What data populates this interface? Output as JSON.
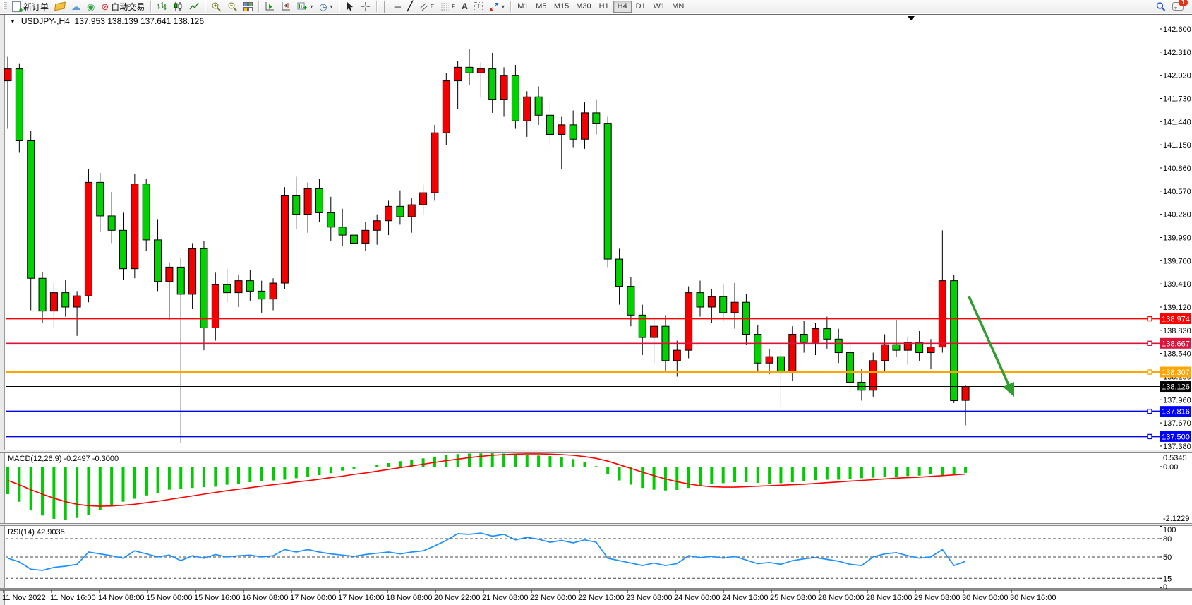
{
  "toolbar": {
    "new_order_label": "新订单",
    "auto_trading_label": "自动交易",
    "timeframes": [
      "M1",
      "M5",
      "M15",
      "M30",
      "H1",
      "H4",
      "D1",
      "W1",
      "MN"
    ],
    "active_timeframe": "H4",
    "chat_badge": "1",
    "glyphs": {
      "text_tool": "A",
      "label_tool": "T",
      "channel_tool": "E",
      "fibonacci_tool": "F"
    }
  },
  "chart_window": {
    "title_symbol": "USDJPY-,H4",
    "title_ohlc": "137.953 138.139 137.641 138.126",
    "price_axis_ticks": [
      "142.600",
      "142.310",
      "142.020",
      "141.730",
      "141.440",
      "141.150",
      "140.860",
      "140.570",
      "140.280",
      "139.990",
      "139.700",
      "139.410",
      "139.120",
      "138.830",
      "138.540",
      "138.250",
      "137.960",
      "137.670",
      "137.380"
    ],
    "time_labels": [
      "11 Nov 2022",
      "11 Nov 16:00",
      "14 Nov 08:00",
      "15 Nov 00:00",
      "15 Nov 16:00",
      "16 Nov 08:00",
      "17 Nov 00:00",
      "17 Nov 16:00",
      "18 Nov 08:00",
      "20 Nov 22:00",
      "21 Nov 08:00",
      "22 Nov 00:00",
      "22 Nov 16:00",
      "23 Nov 08:00",
      "24 Nov 00:00",
      "24 Nov 16:00",
      "25 Nov 08:00",
      "28 Nov 00:00",
      "28 Nov 16:00",
      "29 Nov 08:00",
      "30 Nov 00:00",
      "30 Nov 16:00"
    ],
    "levels": [
      {
        "label": "138.974",
        "value": 138.974,
        "color": "#FF0000",
        "marker": true,
        "width": 1.6
      },
      {
        "label": "138.667",
        "value": 138.667,
        "color": "#DC143C",
        "marker": true,
        "width": 1.6
      },
      {
        "label": "138.307",
        "value": 138.307,
        "color": "#FFA500",
        "marker": true,
        "width": 2
      },
      {
        "label": "138.126",
        "value": 138.126,
        "color": "#000000",
        "marker": false,
        "width": 1
      },
      {
        "label": "137.816",
        "value": 137.816,
        "color": "#0000FF",
        "marker": true,
        "width": 2
      },
      {
        "label": "137.500",
        "value": 137.5,
        "color": "#0000FF",
        "marker": true,
        "width": 2
      }
    ],
    "colors": {
      "bull": "#F40000",
      "bear": "#00D300",
      "outline": "#000000",
      "macd_hist": "#00CC00",
      "macd_signal": "#FF0000",
      "rsi_line": "#1E90FF",
      "arrow": "#2E9E2E"
    }
  },
  "macd_panel": {
    "name": "MACD(12,26,9)",
    "values": "-0.2497 -0.3000",
    "axis_labels": [
      "0.5345",
      "0.00",
      "-2.1229"
    ]
  },
  "rsi_panel": {
    "name": "RSI(14)",
    "value": "42.9035",
    "axis_labels": [
      100,
      80,
      50,
      15,
      0
    ],
    "level_values": [
      80,
      50,
      15
    ]
  },
  "chart_data": {
    "type": "candlestick",
    "symbol": "USDJPY-",
    "timeframe": "H4",
    "ohlc": [
      [
        141.95,
        142.25,
        141.35,
        142.1
      ],
      [
        142.1,
        142.17,
        141.05,
        141.2
      ],
      [
        141.2,
        141.32,
        139.08,
        139.48
      ],
      [
        139.48,
        139.56,
        138.92,
        139.07
      ],
      [
        139.07,
        139.42,
        138.86,
        139.3
      ],
      [
        139.3,
        139.46,
        139.0,
        139.12
      ],
      [
        139.12,
        139.32,
        138.76,
        139.26
      ],
      [
        139.26,
        140.85,
        139.18,
        140.68
      ],
      [
        140.68,
        140.8,
        140.06,
        140.26
      ],
      [
        140.26,
        140.56,
        139.92,
        140.08
      ],
      [
        140.08,
        140.3,
        139.46,
        139.6
      ],
      [
        139.6,
        140.78,
        139.48,
        140.66
      ],
      [
        140.66,
        140.72,
        139.82,
        139.96
      ],
      [
        139.96,
        140.22,
        139.32,
        139.44
      ],
      [
        139.44,
        139.68,
        138.96,
        139.62
      ],
      [
        139.62,
        139.74,
        137.42,
        139.28
      ],
      [
        139.28,
        139.92,
        139.1,
        139.85
      ],
      [
        139.85,
        139.95,
        138.58,
        138.86
      ],
      [
        138.86,
        139.55,
        138.7,
        139.4
      ],
      [
        139.4,
        139.6,
        139.18,
        139.3
      ],
      [
        139.3,
        139.52,
        139.12,
        139.45
      ],
      [
        139.45,
        139.58,
        139.2,
        139.32
      ],
      [
        139.32,
        139.45,
        139.05,
        139.22
      ],
      [
        139.22,
        139.48,
        139.08,
        139.42
      ],
      [
        139.42,
        140.62,
        139.35,
        140.52
      ],
      [
        140.52,
        140.75,
        140.1,
        140.28
      ],
      [
        140.28,
        140.68,
        140.05,
        140.6
      ],
      [
        140.6,
        140.72,
        140.18,
        140.3
      ],
      [
        140.3,
        140.5,
        139.95,
        140.12
      ],
      [
        140.12,
        140.35,
        139.88,
        140.02
      ],
      [
        140.02,
        140.22,
        139.78,
        139.92
      ],
      [
        139.92,
        140.18,
        139.82,
        140.08
      ],
      [
        140.08,
        140.28,
        139.9,
        140.2
      ],
      [
        140.2,
        140.45,
        140.02,
        140.38
      ],
      [
        140.38,
        140.58,
        140.15,
        140.25
      ],
      [
        140.25,
        140.48,
        140.05,
        140.4
      ],
      [
        140.4,
        140.65,
        140.28,
        140.55
      ],
      [
        140.55,
        141.4,
        140.45,
        141.3
      ],
      [
        141.3,
        142.05,
        141.15,
        141.95
      ],
      [
        141.95,
        142.2,
        141.6,
        142.12
      ],
      [
        142.12,
        142.35,
        141.9,
        142.05
      ],
      [
        142.05,
        142.18,
        141.75,
        142.1
      ],
      [
        142.1,
        142.3,
        141.55,
        141.72
      ],
      [
        141.72,
        142.12,
        141.5,
        142.02
      ],
      [
        142.02,
        142.15,
        141.35,
        141.45
      ],
      [
        141.45,
        141.82,
        141.25,
        141.75
      ],
      [
        141.75,
        141.88,
        141.4,
        141.52
      ],
      [
        141.52,
        141.7,
        141.15,
        141.28
      ],
      [
        141.28,
        141.5,
        140.85,
        141.4
      ],
      [
        141.4,
        141.58,
        141.12,
        141.22
      ],
      [
        141.22,
        141.68,
        141.1,
        141.55
      ],
      [
        141.55,
        141.72,
        141.28,
        141.42
      ],
      [
        141.42,
        141.5,
        139.62,
        139.72
      ],
      [
        139.72,
        139.85,
        139.15,
        139.38
      ],
      [
        139.38,
        139.5,
        138.88,
        139.02
      ],
      [
        139.02,
        139.15,
        138.52,
        138.74
      ],
      [
        138.74,
        139.0,
        138.42,
        138.88
      ],
      [
        138.88,
        139.02,
        138.3,
        138.45
      ],
      [
        138.45,
        138.7,
        138.25,
        138.58
      ],
      [
        138.58,
        139.38,
        138.48,
        139.3
      ],
      [
        139.3,
        139.45,
        139.0,
        139.12
      ],
      [
        139.12,
        139.35,
        138.92,
        139.25
      ],
      [
        139.25,
        139.4,
        138.95,
        139.05
      ],
      [
        139.05,
        139.42,
        138.85,
        139.18
      ],
      [
        139.18,
        139.28,
        138.65,
        138.78
      ],
      [
        138.78,
        138.9,
        138.3,
        138.42
      ],
      [
        138.42,
        138.6,
        138.28,
        138.5
      ],
      [
        138.5,
        138.62,
        137.88,
        138.3
      ],
      [
        138.3,
        138.88,
        138.2,
        138.78
      ],
      [
        138.78,
        138.95,
        138.55,
        138.68
      ],
      [
        138.68,
        138.92,
        138.52,
        138.85
      ],
      [
        138.85,
        139.0,
        138.6,
        138.72
      ],
      [
        138.72,
        138.85,
        138.42,
        138.55
      ],
      [
        138.55,
        138.7,
        138.05,
        138.18
      ],
      [
        138.18,
        138.35,
        137.95,
        138.08
      ],
      [
        138.08,
        138.55,
        138.0,
        138.45
      ],
      [
        138.45,
        138.78,
        138.32,
        138.65
      ],
      [
        138.65,
        138.96,
        138.5,
        138.58
      ],
      [
        138.58,
        138.75,
        138.4,
        138.68
      ],
      [
        138.68,
        138.82,
        138.45,
        138.55
      ],
      [
        138.55,
        138.72,
        138.35,
        138.62
      ],
      [
        138.62,
        140.08,
        138.55,
        139.45
      ],
      [
        139.45,
        139.52,
        137.92,
        137.95
      ],
      [
        137.953,
        138.139,
        137.641,
        138.126
      ]
    ],
    "macd_histogram": [
      -1.1,
      -1.4,
      -1.75,
      -1.95,
      -2.08,
      -2.12,
      -2.05,
      -1.92,
      -1.72,
      -1.55,
      -1.4,
      -1.28,
      -1.15,
      -1.05,
      -0.92,
      -0.88,
      -0.85,
      -0.82,
      -0.8,
      -0.72,
      -0.68,
      -0.62,
      -0.58,
      -0.55,
      -0.52,
      -0.46,
      -0.4,
      -0.34,
      -0.26,
      -0.16,
      -0.08,
      -0.02,
      0.06,
      0.14,
      0.22,
      0.28,
      0.33,
      0.4,
      0.46,
      0.5,
      0.52,
      0.53,
      0.5345,
      0.52,
      0.5,
      0.46,
      0.44,
      0.42,
      0.38,
      0.3,
      0.18,
      0.02,
      -0.3,
      -0.55,
      -0.72,
      -0.85,
      -0.92,
      -0.95,
      -0.93,
      -0.85,
      -0.78,
      -0.7,
      -0.66,
      -0.62,
      -0.62,
      -0.65,
      -0.68,
      -0.66,
      -0.62,
      -0.58,
      -0.54,
      -0.52,
      -0.52,
      -0.5,
      -0.46,
      -0.44,
      -0.42,
      -0.4,
      -0.38,
      -0.36,
      -0.3,
      -0.34,
      -0.32,
      -0.2497
    ],
    "macd_signal": [
      -0.55,
      -0.72,
      -0.92,
      -1.1,
      -1.26,
      -1.4,
      -1.5,
      -1.56,
      -1.58,
      -1.57,
      -1.54,
      -1.5,
      -1.44,
      -1.38,
      -1.31,
      -1.24,
      -1.17,
      -1.1,
      -1.03,
      -0.96,
      -0.9,
      -0.84,
      -0.78,
      -0.72,
      -0.67,
      -0.61,
      -0.56,
      -0.5,
      -0.44,
      -0.38,
      -0.31,
      -0.25,
      -0.18,
      -0.11,
      -0.04,
      0.03,
      0.1,
      0.17,
      0.24,
      0.3,
      0.36,
      0.41,
      0.45,
      0.48,
      0.5,
      0.51,
      0.51,
      0.5,
      0.48,
      0.45,
      0.4,
      0.33,
      0.22,
      0.08,
      -0.07,
      -0.22,
      -0.36,
      -0.49,
      -0.6,
      -0.69,
      -0.76,
      -0.8,
      -0.82,
      -0.82,
      -0.8,
      -0.78,
      -0.76,
      -0.74,
      -0.72,
      -0.7,
      -0.67,
      -0.64,
      -0.61,
      -0.58,
      -0.55,
      -0.52,
      -0.49,
      -0.46,
      -0.44,
      -0.42,
      -0.39,
      -0.36,
      -0.33,
      -0.3
    ],
    "rsi": [
      48,
      42,
      30,
      28,
      33,
      35,
      38,
      58,
      55,
      52,
      48,
      60,
      55,
      50,
      53,
      44,
      52,
      48,
      54,
      50,
      52,
      53,
      50,
      52,
      62,
      58,
      62,
      58,
      55,
      53,
      51,
      54,
      56,
      58,
      55,
      58,
      60,
      68,
      77,
      88,
      87,
      89,
      84,
      87,
      78,
      82,
      79,
      74,
      77,
      73,
      78,
      74,
      48,
      44,
      40,
      36,
      40,
      36,
      39,
      52,
      49,
      51,
      48,
      51,
      45,
      39,
      41,
      38,
      44,
      47,
      49,
      46,
      43,
      38,
      36,
      50,
      55,
      57,
      52,
      48,
      50,
      62,
      36,
      42.9
    ]
  }
}
